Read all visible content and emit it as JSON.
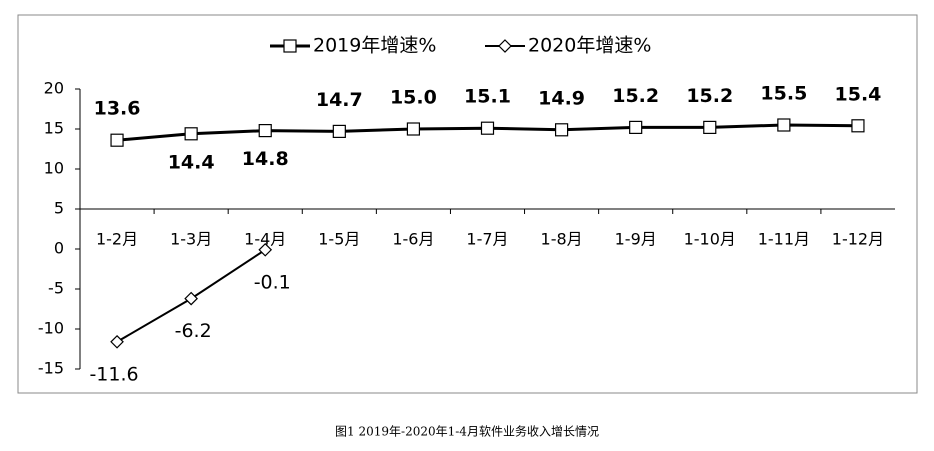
{
  "chart_data": {
    "type": "line",
    "categories": [
      "1-2月",
      "1-3月",
      "1-4月",
      "1-5月",
      "1-6月",
      "1-7月",
      "1-8月",
      "1-9月",
      "1-10月",
      "1-11月",
      "1-12月"
    ],
    "series": [
      {
        "name": "2019年增速%",
        "color": "#000000",
        "marker": "square",
        "values": [
          13.6,
          14.4,
          14.8,
          14.7,
          15.0,
          15.1,
          14.9,
          15.2,
          15.2,
          15.5,
          15.4
        ],
        "value_labels": [
          "13.6",
          "14.4",
          "14.8",
          "14.7",
          "15.0",
          "15.1",
          "14.9",
          "15.2",
          "15.2",
          "15.5",
          "15.4"
        ]
      },
      {
        "name": "2020年增速%",
        "color": "#000000",
        "marker": "diamond",
        "values": [
          -11.6,
          -6.2,
          -0.1,
          null,
          null,
          null,
          null,
          null,
          null,
          null,
          null
        ]
      }
    ],
    "ylim": [
      -15,
      20
    ],
    "yticks": [
      -15,
      -10,
      -5,
      0,
      5,
      10,
      15,
      20
    ],
    "xaxis_cross": 5,
    "legend": "top",
    "caption": "图1    2019年-2020年1-4月软件业务收入增长情况"
  }
}
